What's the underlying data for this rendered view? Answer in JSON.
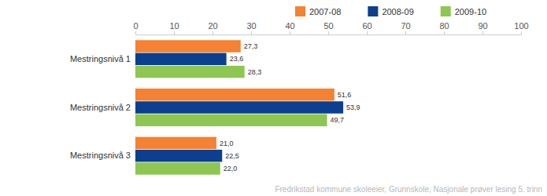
{
  "chart_data": {
    "type": "bar",
    "orientation": "horizontal",
    "categories": [
      "Mestringsnivå 1",
      "Mestringsnivå 2",
      "Mestringsnivå 3"
    ],
    "series": [
      {
        "name": "2007-08",
        "color": "#f58132",
        "values": [
          27.3,
          51.6,
          21.0
        ],
        "value_labels": [
          "27,3",
          "51,6",
          "21,0"
        ]
      },
      {
        "name": "2008-09",
        "color": "#0b3f8f",
        "values": [
          23.6,
          53.9,
          22.5
        ],
        "value_labels": [
          "23,6",
          "53,9",
          "22,5"
        ]
      },
      {
        "name": "2009-10",
        "color": "#8dc752",
        "values": [
          28.3,
          49.7,
          22.0
        ],
        "value_labels": [
          "28,3",
          "49,7",
          "22,0"
        ]
      }
    ],
    "xlim": [
      0,
      100
    ],
    "xticks": [
      0,
      10,
      20,
      30,
      40,
      50,
      60,
      70,
      80,
      90,
      100
    ],
    "grid": false,
    "legend": "top-right",
    "data_labels": true,
    "annotations": [
      "Fredrikstad kommune skoleeier, Grunnskole, Nasjonale prøver lesing 5. trinn"
    ]
  }
}
